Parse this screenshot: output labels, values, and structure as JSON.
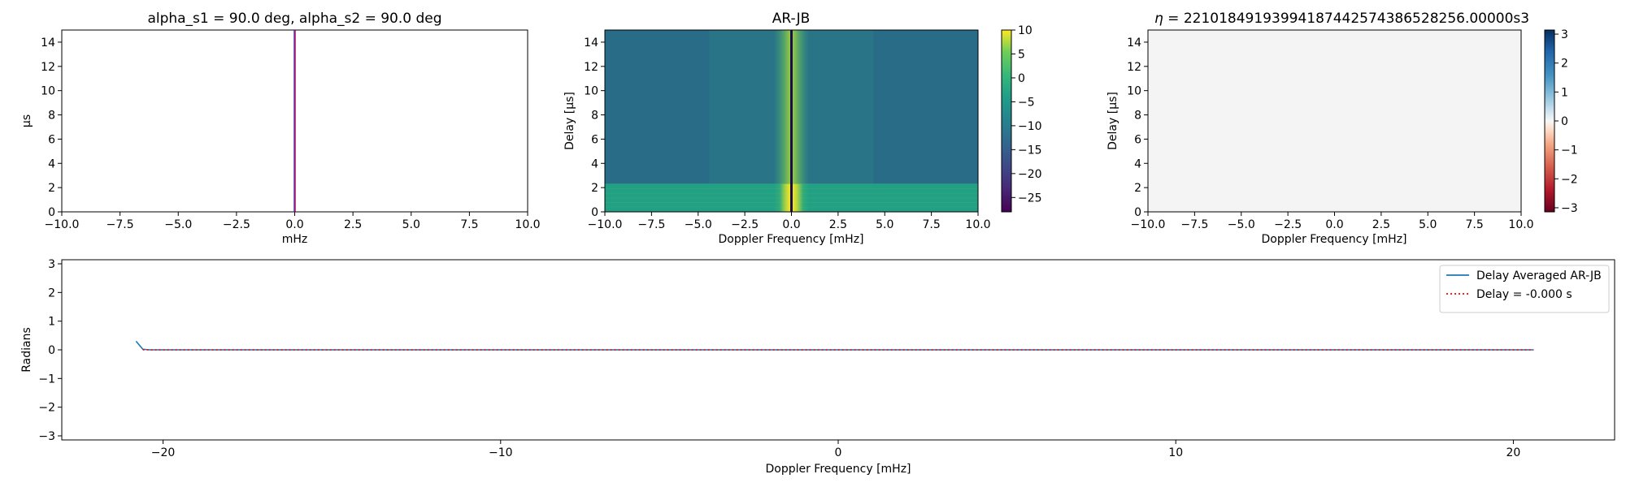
{
  "chart_data": [
    {
      "id": "panel_a",
      "type": "line",
      "title": "alpha_s1 = 90.0 deg, alpha_s2 = 90.0 deg",
      "xlabel": "mHz",
      "ylabel": "µs",
      "xlim": [
        -10,
        10
      ],
      "ylim": [
        0,
        15
      ],
      "x_ticks": [
        -10,
        -7.5,
        -5,
        -2.5,
        0,
        2.5,
        5,
        7.5,
        10
      ],
      "x_tick_labels": [
        "−10.0",
        "−7.5",
        "−5.0",
        "−2.5",
        "0.0",
        "2.5",
        "5.0",
        "7.5",
        "10.0"
      ],
      "y_ticks": [
        0,
        2,
        4,
        6,
        8,
        10,
        12,
        14
      ],
      "y_tick_labels": [
        "0",
        "2",
        "4",
        "6",
        "8",
        "10",
        "12",
        "14"
      ],
      "series": [
        {
          "color": "#0000ff",
          "x": [
            0,
            0
          ],
          "y": [
            0,
            15
          ]
        },
        {
          "color": "#ff0000",
          "x": [
            0,
            0
          ],
          "y": [
            0,
            15
          ]
        }
      ]
    },
    {
      "id": "panel_b",
      "type": "heatmap",
      "title": "AR-JB",
      "xlabel": "Doppler Frequency [mHz]",
      "ylabel": "Delay [µs]",
      "xlim": [
        -10,
        10
      ],
      "ylim": [
        0,
        15
      ],
      "x_ticks": [
        -10,
        -7.5,
        -5,
        -2.5,
        0,
        2.5,
        5,
        7.5,
        10
      ],
      "x_tick_labels": [
        "−10.0",
        "−7.5",
        "−5.0",
        "−2.5",
        "0.0",
        "2.5",
        "5.0",
        "7.5",
        "10.0"
      ],
      "y_ticks": [
        0,
        2,
        4,
        6,
        8,
        10,
        12,
        14
      ],
      "y_tick_labels": [
        "0",
        "2",
        "4",
        "6",
        "8",
        "10",
        "12",
        "14"
      ],
      "colorbar": {
        "colormap": "viridis",
        "range": [
          -28,
          10
        ],
        "ticks": [
          10,
          5,
          0,
          -5,
          -10,
          -15,
          -20,
          -25
        ],
        "tick_labels": [
          "10",
          "5",
          "0",
          "−5",
          "−10",
          "−15",
          "−20",
          "−25"
        ]
      },
      "levels": {
        "background": -10.5,
        "edge_band": -8.5,
        "low_delay_band": -4.5,
        "center": 4,
        "center_line": -25
      },
      "center_line_x": 0
    },
    {
      "id": "panel_c",
      "type": "heatmap",
      "title": "η = 2210184919399418744257438652825​6.00000s3",
      "title_display": "2210184919399418744257438652825​6.00000s3",
      "xlabel": "Doppler Frequency [mHz]",
      "ylabel": "Delay [µs]",
      "xlim": [
        -10,
        10
      ],
      "ylim": [
        0,
        15
      ],
      "x_ticks": [
        -10,
        -7.5,
        -5,
        -2.5,
        0,
        2.5,
        5,
        7.5,
        10
      ],
      "x_tick_labels": [
        "−10.0",
        "−7.5",
        "−5.0",
        "−2.5",
        "0.0",
        "2.5",
        "5.0",
        "7.5",
        "10.0"
      ],
      "y_ticks": [
        0,
        2,
        4,
        6,
        8,
        10,
        12,
        14
      ],
      "y_tick_labels": [
        "0",
        "2",
        "4",
        "6",
        "8",
        "10",
        "12",
        "14"
      ],
      "fill_color": "#f4f4f4",
      "colorbar": {
        "colormap": "RdBu",
        "range": [
          -3.14159,
          3.14159
        ],
        "ticks": [
          3,
          2,
          1,
          0,
          -1,
          -2,
          -3
        ],
        "tick_labels": [
          "3",
          "2",
          "1",
          "0",
          "−1",
          "−2",
          "−3"
        ]
      }
    },
    {
      "id": "panel_d",
      "type": "line",
      "title": "",
      "xlabel": "Doppler Frequency [mHz]",
      "ylabel": "Radians",
      "xlim": [
        -23,
        23
      ],
      "ylim": [
        -3.14159,
        3.14159
      ],
      "x_ticks": [
        -20,
        -10,
        0,
        10,
        20
      ],
      "x_tick_labels": [
        "−20",
        "−10",
        "0",
        "10",
        "20"
      ],
      "y_ticks": [
        -3,
        -2,
        -1,
        0,
        1,
        2,
        3
      ],
      "y_tick_labels": [
        "−3",
        "−2",
        "−1",
        "0",
        "1",
        "2",
        "3"
      ],
      "legend_position": "top-right",
      "series": [
        {
          "name": "Delay Averaged  AR-JB",
          "color": "#1f77b4",
          "style": "solid",
          "x": [
            -20.8,
            -20.6,
            -20.4,
            0,
            20.6
          ],
          "y": [
            0.3,
            0.02,
            0.0,
            0.0,
            0.0
          ]
        },
        {
          "name": "Delay = -0.000 s",
          "color": "#ff0000",
          "style": "dotted",
          "x": [
            -20.6,
            20.6
          ],
          "y": [
            0.0,
            0.0
          ]
        }
      ]
    }
  ]
}
